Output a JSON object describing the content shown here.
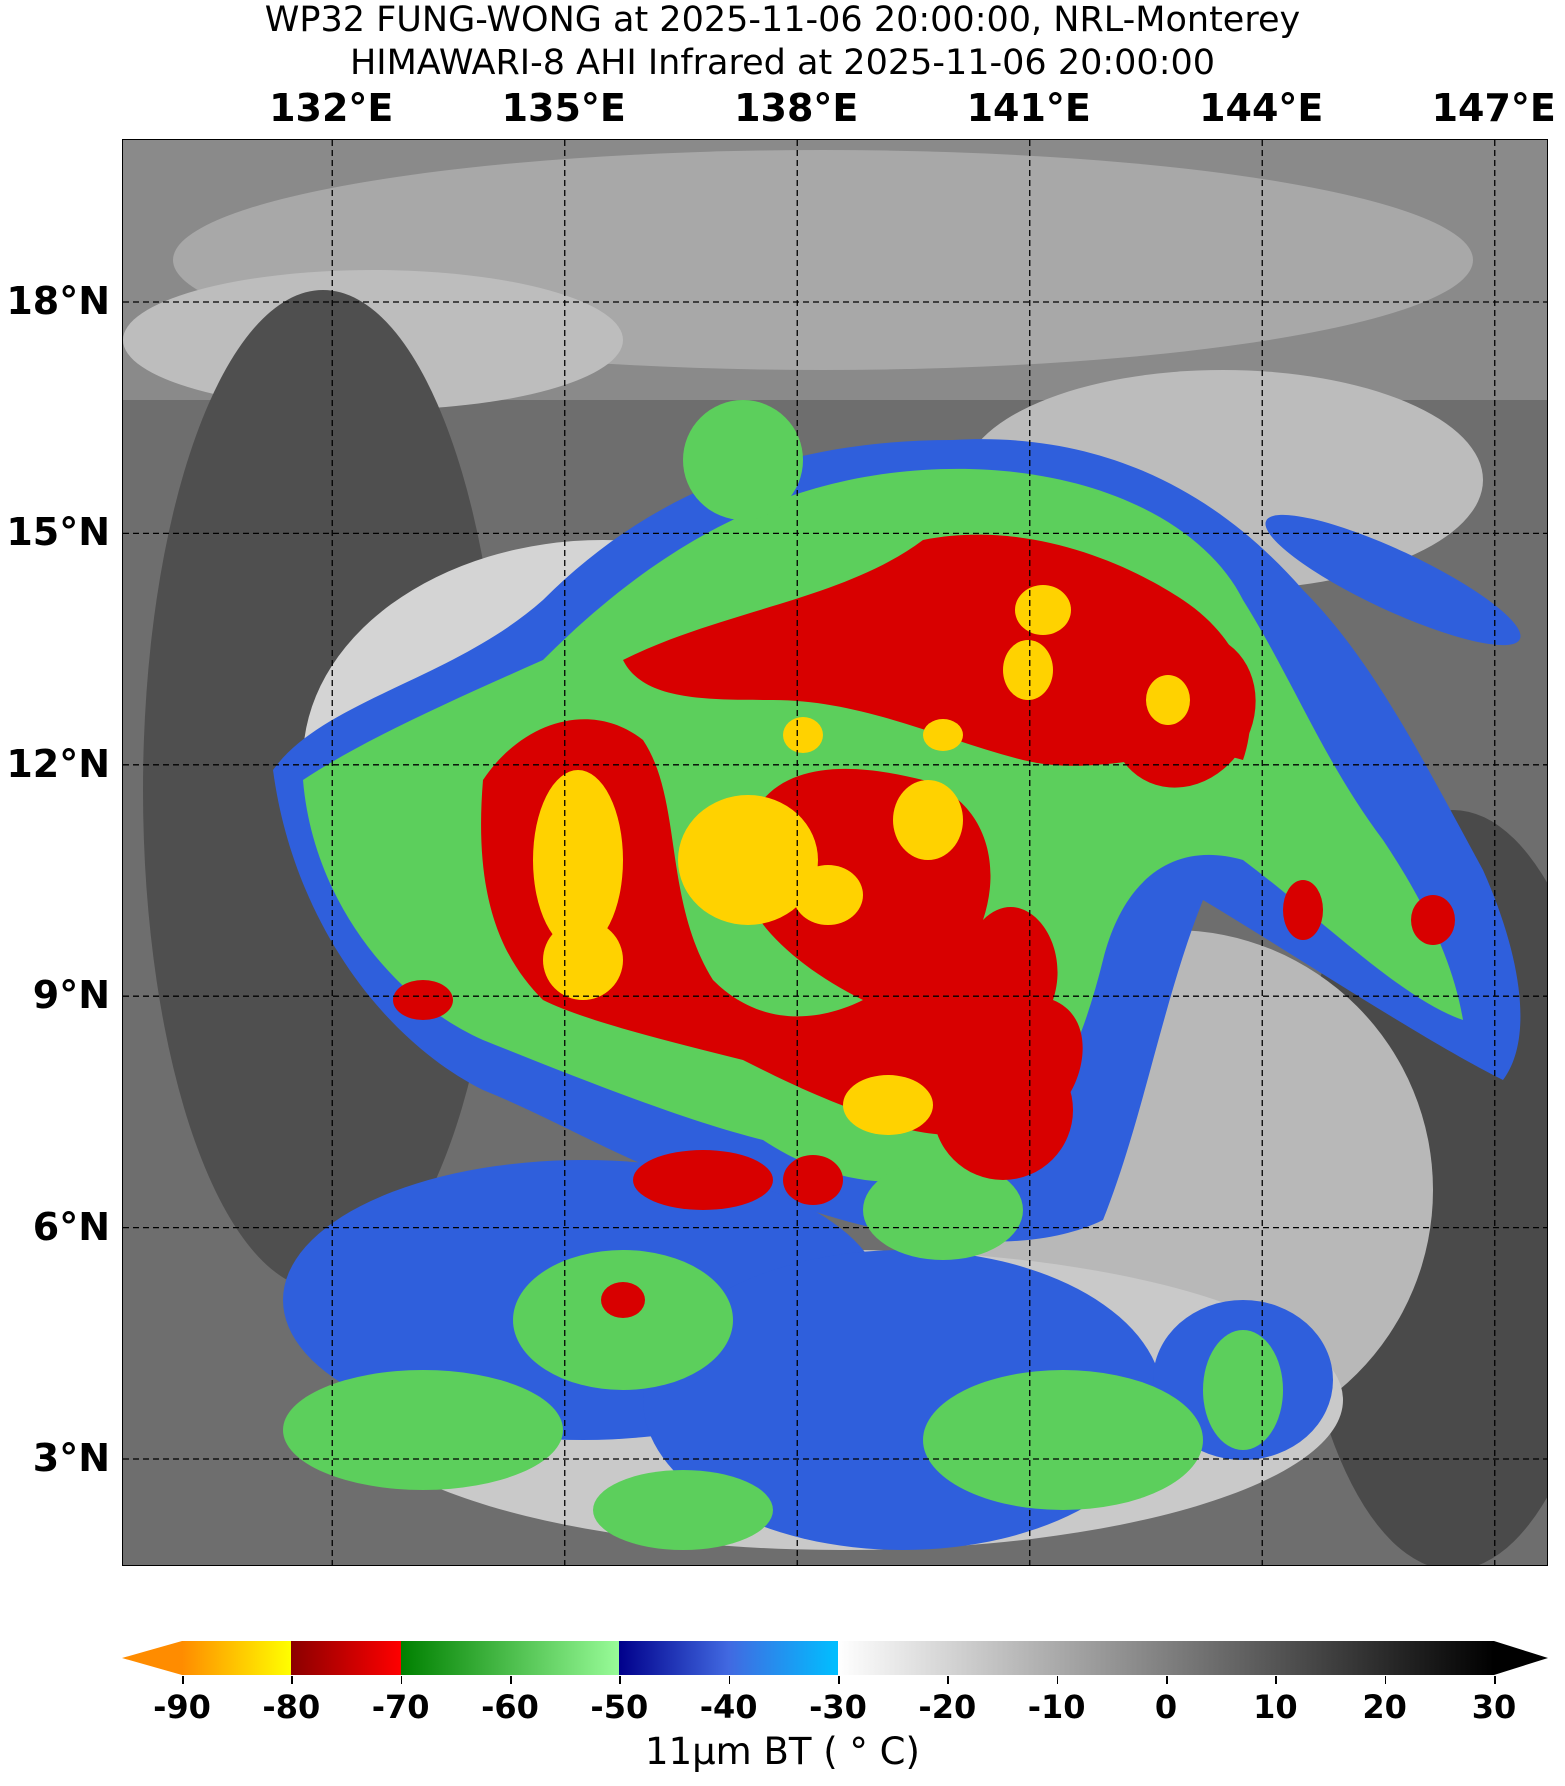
{
  "title": {
    "line1": "WP32 FUNG-WONG at 2025-11-06 20:00:00, NRL-Monterey",
    "line2": "HIMAWARI-8 AHI Infrared at 2025-11-06 20:00:00"
  },
  "map": {
    "type": "satellite-infrared",
    "lon_range": [
      129.3,
      147.7
    ],
    "lat_range": [
      1.6,
      20.1
    ],
    "lon_ticks": [
      {
        "value": 132,
        "label": "132°E"
      },
      {
        "value": 135,
        "label": "135°E"
      },
      {
        "value": 138,
        "label": "138°E"
      },
      {
        "value": 141,
        "label": "141°E"
      },
      {
        "value": 144,
        "label": "144°E"
      },
      {
        "value": 147,
        "label": "147°E"
      }
    ],
    "lat_ticks": [
      {
        "value": 18,
        "label": "18°N"
      },
      {
        "value": 15,
        "label": "15°N"
      },
      {
        "value": 12,
        "label": "12°N"
      },
      {
        "value": 9,
        "label": "9°N"
      },
      {
        "value": 6,
        "label": "6°N"
      },
      {
        "value": 3,
        "label": "3°N"
      }
    ],
    "gridlines": "dashed",
    "storm_center_approx": {
      "lon": 138.0,
      "lat": 10.5
    }
  },
  "colorbar": {
    "label": "11μm BT ( ° C)",
    "range": [
      -90,
      30
    ],
    "extend": "both",
    "ticks": [
      -90,
      -80,
      -70,
      -60,
      -50,
      -40,
      -30,
      -20,
      -10,
      0,
      10,
      20,
      30
    ],
    "segments": [
      {
        "from": -90,
        "to": -80,
        "colors": [
          "#ff8c00",
          "#ffff00"
        ]
      },
      {
        "from": -80,
        "to": -70,
        "colors": [
          "#8b0000",
          "#ff0000"
        ]
      },
      {
        "from": -70,
        "to": -50,
        "colors": [
          "#008000",
          "#98fb98"
        ]
      },
      {
        "from": -50,
        "to": -30,
        "colors": [
          "#00008b",
          "#4169e1",
          "#00bfff"
        ]
      },
      {
        "from": -30,
        "to": 30,
        "colors": [
          "#ffffff",
          "#000000"
        ]
      }
    ],
    "under_color": "#ff8c00",
    "over_color": "#000000"
  }
}
